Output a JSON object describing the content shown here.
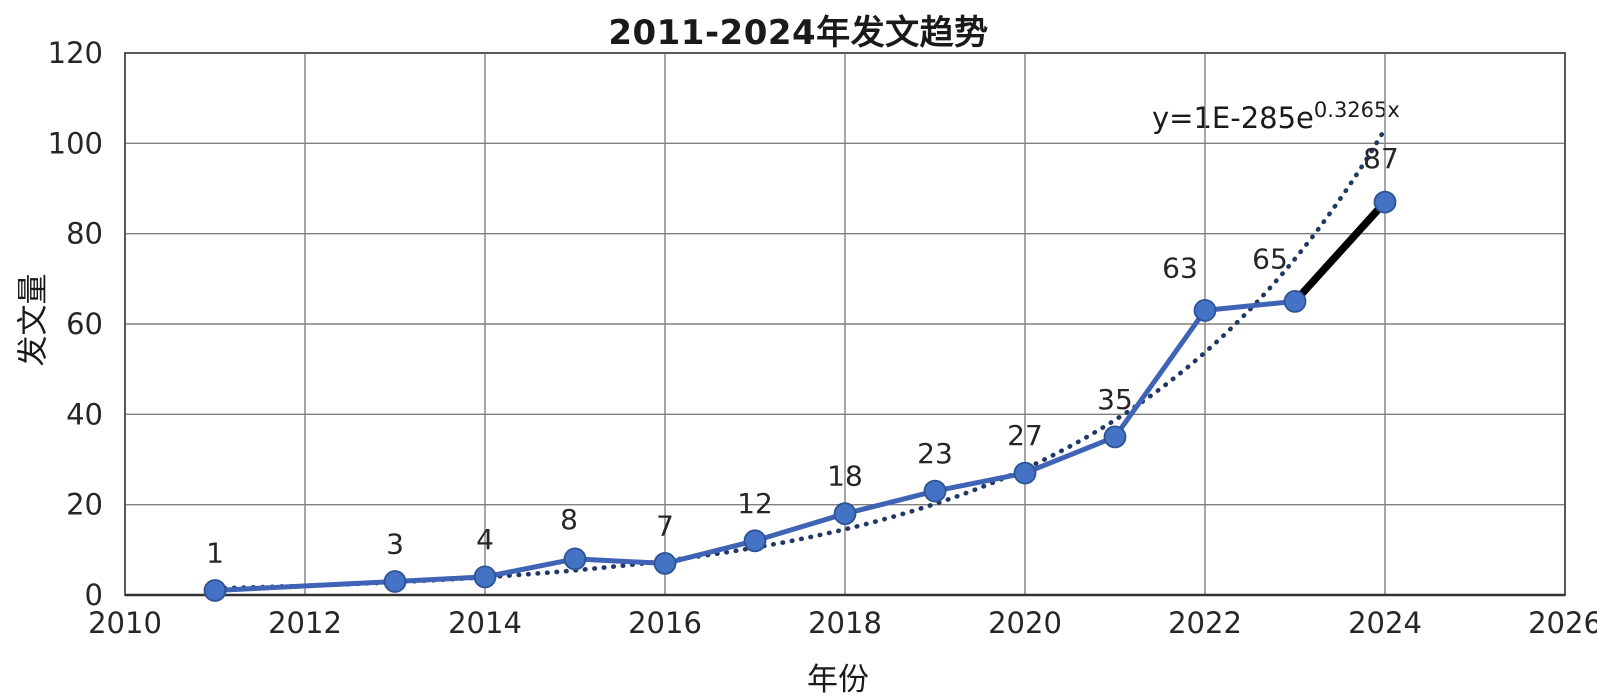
{
  "chart_data": {
    "type": "line",
    "title": "2011-2024年发文趋势",
    "xlabel": "年份",
    "ylabel": "发文量",
    "series_name": "发文量",
    "x": [
      2011,
      2013,
      2014,
      2015,
      2016,
      2017,
      2018,
      2019,
      2020,
      2021,
      2022,
      2023,
      2024
    ],
    "values": [
      1,
      3,
      4,
      8,
      7,
      12,
      18,
      23,
      27,
      35,
      63,
      65,
      87
    ],
    "data_labels_shown": true,
    "xlim": [
      2010,
      2026
    ],
    "ylim": [
      0,
      120
    ],
    "x_ticks": [
      2010,
      2012,
      2014,
      2016,
      2018,
      2020,
      2022,
      2024,
      2026
    ],
    "y_ticks": [
      0,
      20,
      40,
      60,
      80,
      100,
      120
    ],
    "grid": true,
    "legend": "none",
    "trendline": {
      "equation_base": "y=1E-285e",
      "equation_exponent": "0.3265x",
      "type": "exponential",
      "a_at_start": 1.48,
      "b": 0.3265,
      "x_start": 2011,
      "x_end": 2024,
      "style": "dotted",
      "color": "#1F3864"
    },
    "highlight_segment": {
      "from_x": 2023,
      "to_x": 2024,
      "color": "#000000"
    },
    "colors": {
      "line": "#3F63B5",
      "marker_fill": "#4472C4",
      "marker_stroke": "#2E5395",
      "grid": "#808080",
      "border": "#595959",
      "axis": "#333333",
      "text": "#262626"
    },
    "label_offsets": {
      "2015": [
        -6,
        -30
      ],
      "2022": [
        -25,
        -33
      ],
      "2023": [
        -25,
        -33
      ],
      "2024": [
        -4,
        -34
      ]
    }
  }
}
